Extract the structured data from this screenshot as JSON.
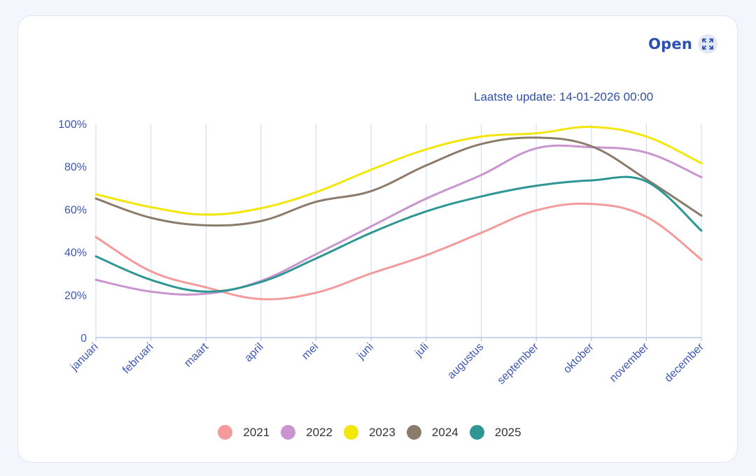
{
  "header": {
    "open_label": "Open",
    "open_icon": "expand-icon",
    "last_update": "Laatste update: 14-01-2026 00:00"
  },
  "colors": {
    "axis_text": "#3d57b5",
    "grid": "#cfd6f1",
    "accent": "#2b4eb0"
  },
  "chart_data": {
    "type": "line",
    "title": "",
    "xlabel": "",
    "ylabel": "",
    "categories": [
      "januari",
      "februari",
      "maart",
      "april",
      "mei",
      "juni",
      "juli",
      "augustus",
      "september",
      "oktober",
      "november",
      "december"
    ],
    "ylim": [
      0,
      100
    ],
    "yticks": [
      0,
      20,
      40,
      60,
      80,
      100
    ],
    "ytick_labels": [
      "0",
      "20%",
      "40%",
      "60%",
      "80%",
      "100%"
    ],
    "grid": "vertical",
    "smooth": true,
    "legend_position": "bottom",
    "series": [
      {
        "name": "2021",
        "color": "#f59a9a",
        "values": [
          47,
          31,
          23.5,
          18,
          21,
          30,
          38.5,
          49,
          59.5,
          62.5,
          56.5,
          36.5
        ]
      },
      {
        "name": "2022",
        "color": "#c994d0",
        "values": [
          27,
          21.5,
          20.5,
          26.5,
          39,
          52,
          65,
          76,
          88.5,
          89,
          86.5,
          75
        ]
      },
      {
        "name": "2023",
        "color": "#f2e60a",
        "values": [
          67,
          61,
          57.5,
          60.5,
          68,
          78.5,
          88,
          94,
          95.5,
          98.5,
          94,
          81.5
        ]
      },
      {
        "name": "2024",
        "color": "#8a7b6b",
        "values": [
          65,
          56,
          52.5,
          54.5,
          63.5,
          68.5,
          80.5,
          90.5,
          93.5,
          89.5,
          74,
          57
        ]
      },
      {
        "name": "2025",
        "color": "#2e9693",
        "values": [
          38,
          27,
          21.5,
          26,
          37,
          49,
          59,
          66,
          71,
          73.5,
          73,
          50
        ]
      }
    ]
  }
}
